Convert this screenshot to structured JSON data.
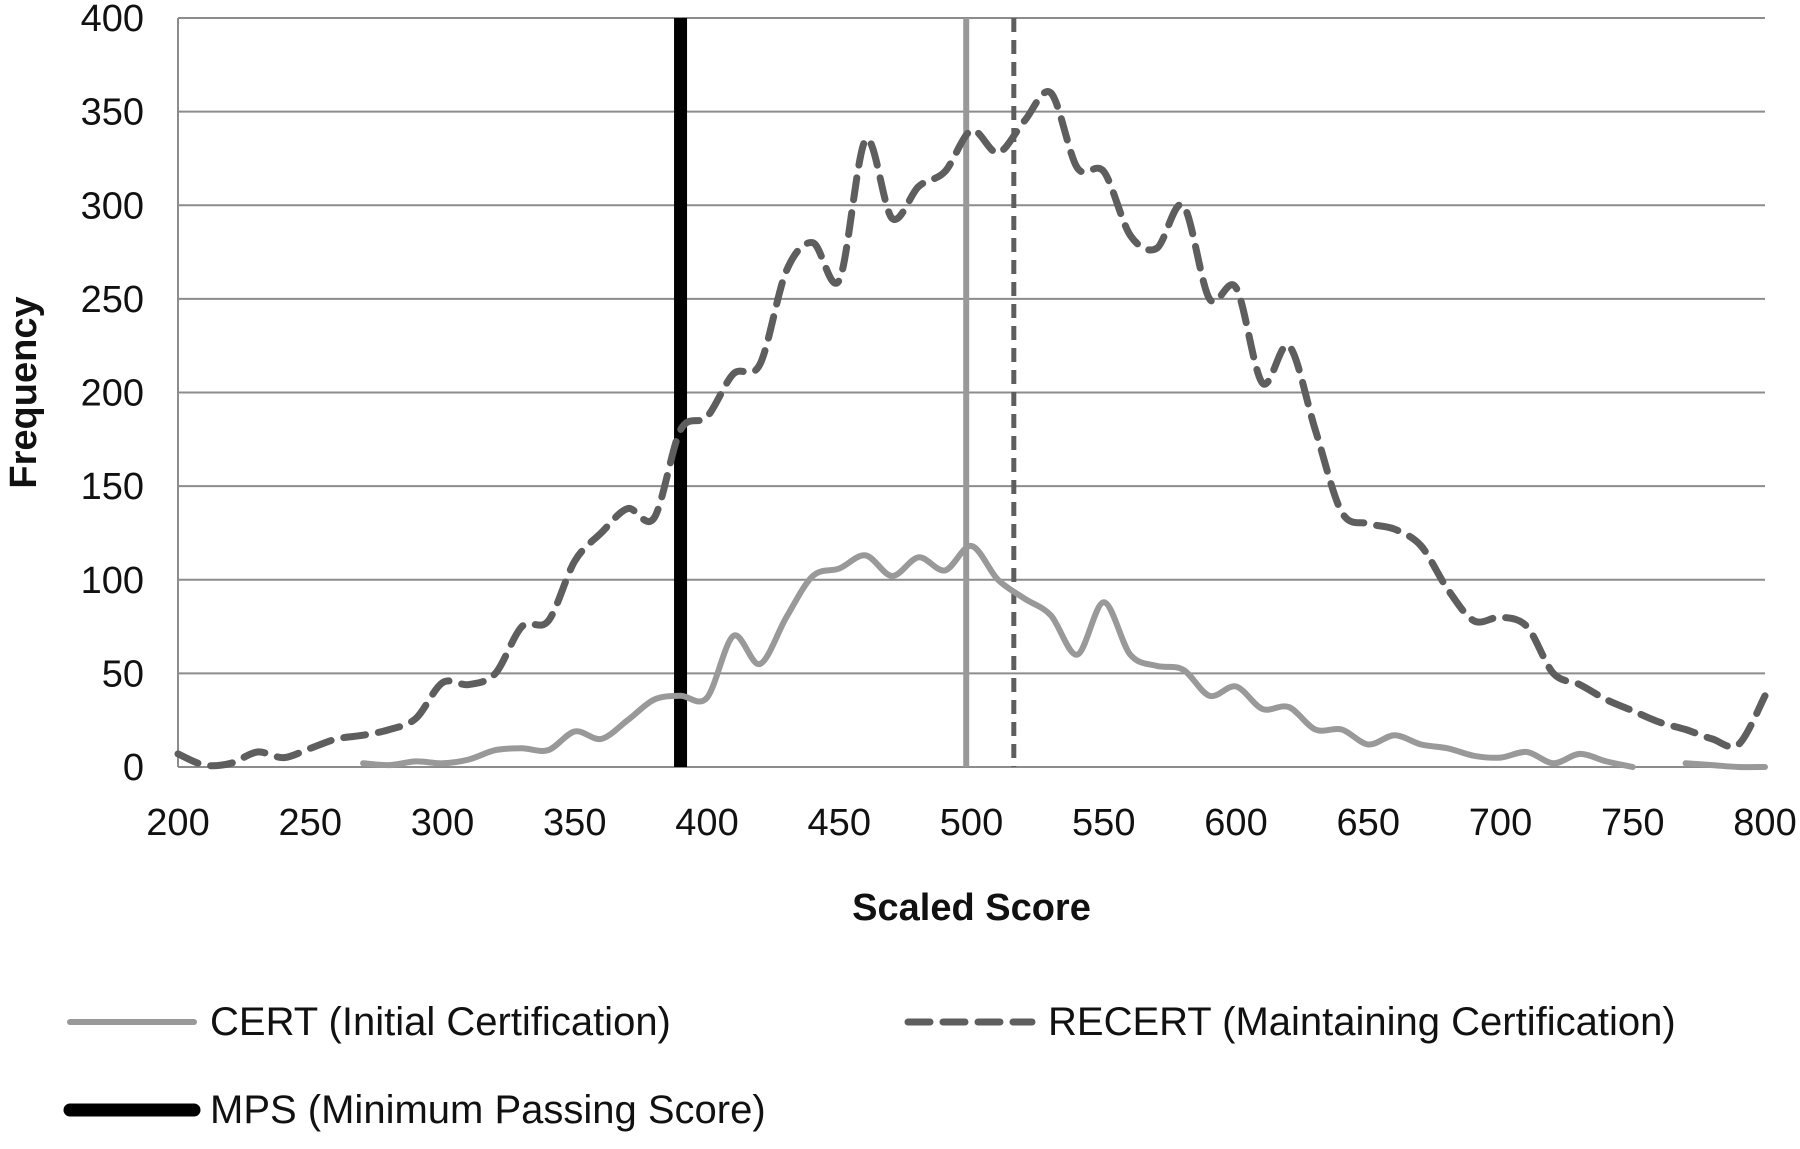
{
  "chart_data": {
    "type": "line",
    "title": "",
    "xlabel": "Scaled Score",
    "ylabel": "Frequency",
    "xlim": [
      200,
      800
    ],
    "ylim": [
      0,
      400
    ],
    "x_ticks": [
      200,
      250,
      300,
      350,
      400,
      450,
      500,
      550,
      600,
      650,
      700,
      750,
      800
    ],
    "y_ticks": [
      0,
      50,
      100,
      150,
      200,
      250,
      300,
      350,
      400
    ],
    "grid": "horizontal",
    "legend_position": "bottom",
    "series": [
      {
        "name": "CERT (Initial Certification)",
        "color": "#999999",
        "style": "solid",
        "segments": [
          [
            [
              270,
              2
            ],
            [
              280,
              1
            ],
            [
              290,
              3
            ],
            [
              300,
              2
            ],
            [
              310,
              4
            ],
            [
              320,
              9
            ],
            [
              330,
              10
            ],
            [
              340,
              9
            ],
            [
              350,
              19
            ],
            [
              360,
              15
            ],
            [
              370,
              25
            ],
            [
              380,
              36
            ],
            [
              390,
              38
            ],
            [
              400,
              37
            ],
            [
              410,
              70
            ],
            [
              420,
              55
            ],
            [
              430,
              80
            ],
            [
              440,
              102
            ],
            [
              450,
              106
            ],
            [
              460,
              113
            ],
            [
              470,
              102
            ],
            [
              480,
              112
            ],
            [
              490,
              105
            ],
            [
              500,
              118
            ],
            [
              510,
              100
            ],
            [
              520,
              90
            ],
            [
              530,
              81
            ],
            [
              540,
              60
            ],
            [
              550,
              88
            ],
            [
              560,
              60
            ],
            [
              570,
              54
            ],
            [
              580,
              52
            ],
            [
              590,
              38
            ],
            [
              600,
              43
            ],
            [
              610,
              31
            ],
            [
              620,
              32
            ],
            [
              630,
              20
            ],
            [
              640,
              20
            ],
            [
              650,
              12
            ],
            [
              660,
              17
            ],
            [
              670,
              12
            ],
            [
              680,
              10
            ],
            [
              690,
              6
            ],
            [
              700,
              5
            ],
            [
              710,
              8
            ],
            [
              720,
              2
            ],
            [
              730,
              7
            ],
            [
              740,
              3
            ],
            [
              750,
              0
            ]
          ],
          [
            [
              770,
              2
            ],
            [
              780,
              1
            ],
            [
              790,
              0
            ],
            [
              800,
              0
            ]
          ]
        ]
      },
      {
        "name": "RECERT (Maintaining Certification)",
        "color": "#5e5e5e",
        "style": "dashed",
        "segments": [
          [
            [
              200,
              7
            ],
            [
              210,
              1
            ],
            [
              220,
              2
            ],
            [
              230,
              8
            ],
            [
              240,
              5
            ],
            [
              250,
              10
            ],
            [
              260,
              15
            ],
            [
              270,
              17
            ],
            [
              280,
              20
            ],
            [
              290,
              26
            ],
            [
              300,
              45
            ],
            [
              310,
              44
            ],
            [
              320,
              50
            ],
            [
              330,
              75
            ],
            [
              340,
              78
            ],
            [
              350,
              110
            ],
            [
              360,
              125
            ],
            [
              370,
              138
            ],
            [
              380,
              133
            ],
            [
              390,
              180
            ],
            [
              400,
              187
            ],
            [
              410,
              210
            ],
            [
              420,
              215
            ],
            [
              430,
              265
            ],
            [
              440,
              280
            ],
            [
              450,
              260
            ],
            [
              460,
              335
            ],
            [
              470,
              293
            ],
            [
              480,
              310
            ],
            [
              490,
              318
            ],
            [
              500,
              340
            ],
            [
              510,
              328
            ],
            [
              520,
              345
            ],
            [
              530,
              360
            ],
            [
              540,
              320
            ],
            [
              550,
              318
            ],
            [
              560,
              284
            ],
            [
              570,
              277
            ],
            [
              580,
              300
            ],
            [
              590,
              250
            ],
            [
              600,
              256
            ],
            [
              610,
              205
            ],
            [
              620,
              225
            ],
            [
              630,
              180
            ],
            [
              640,
              136
            ],
            [
              650,
              130
            ],
            [
              660,
              127
            ],
            [
              670,
              118
            ],
            [
              680,
              95
            ],
            [
              690,
              78
            ],
            [
              700,
              80
            ],
            [
              710,
              75
            ],
            [
              720,
              50
            ],
            [
              730,
              44
            ],
            [
              740,
              36
            ],
            [
              750,
              30
            ],
            [
              760,
              24
            ],
            [
              770,
              20
            ],
            [
              780,
              15
            ],
            [
              790,
              12
            ],
            [
              800,
              38
            ]
          ]
        ]
      }
    ],
    "vertical_lines": [
      {
        "name": "MPS (Minimum Passing Score)",
        "x": 390,
        "color": "#000000",
        "style": "solid-thick"
      },
      {
        "name": "CERT mean",
        "x": 498,
        "color": "#999999",
        "style": "solid"
      },
      {
        "name": "RECERT mean",
        "x": 516,
        "color": "#5e5e5e",
        "style": "dashed"
      }
    ],
    "legend": [
      {
        "label": "CERT (Initial Certification)",
        "color": "#999999",
        "style": "solid"
      },
      {
        "label": "RECERT (Maintaining Certification)",
        "color": "#5e5e5e",
        "style": "dashed"
      },
      {
        "label": "MPS (Minimum Passing Score)",
        "color": "#000000",
        "style": "solid-thick"
      }
    ]
  }
}
